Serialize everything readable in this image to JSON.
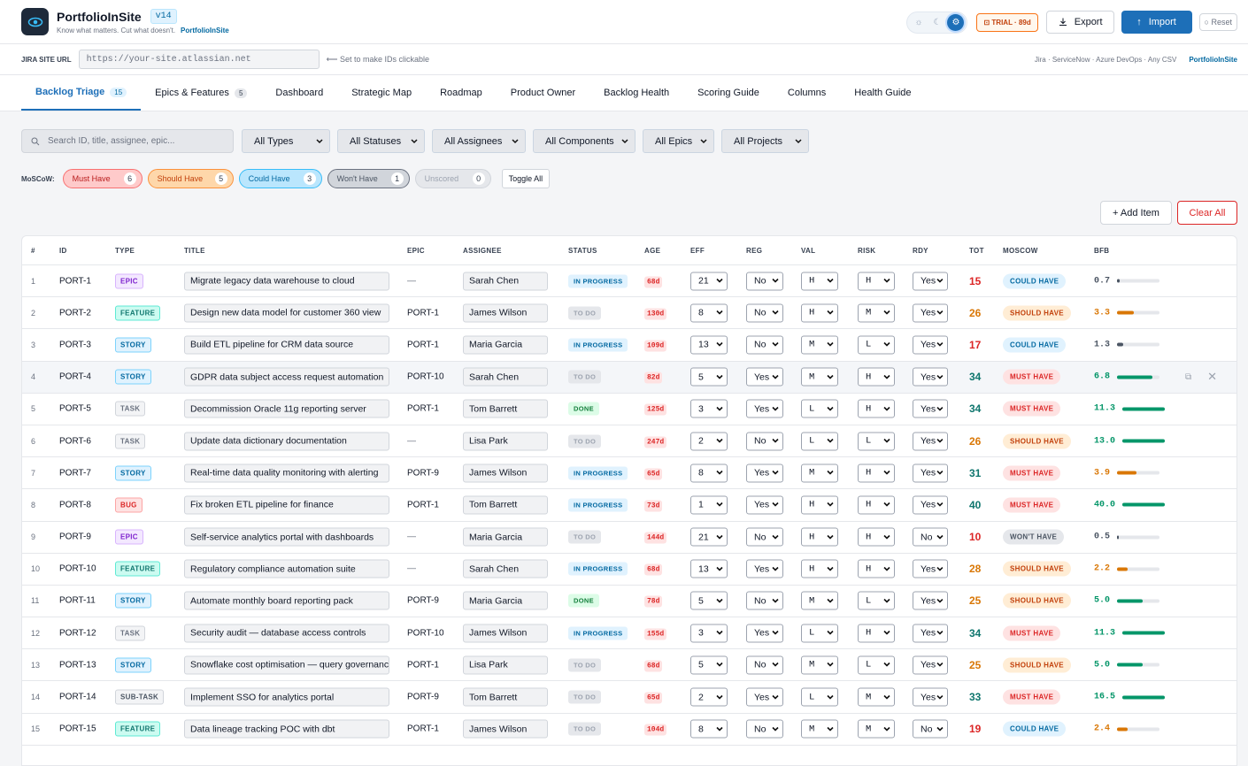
{
  "header": {
    "app_title": "PortfolioInSite",
    "version": "v14",
    "tagline": "Know what matters. Cut what doesn't.",
    "tagline_brand": "PortfolioInSite",
    "trial_label": "TRIAL · 89d",
    "export_label": "Export",
    "import_label": "Import",
    "reset_label": "Reset"
  },
  "jira": {
    "label": "JIRA SITE URL",
    "placeholder": "https://your-site.atlassian.net",
    "hint": "Set to make IDs clickable",
    "sources": "Jira · ServiceNow · Azure DevOps · Any CSV",
    "brand": "PortfolioInSite"
  },
  "tabs": [
    {
      "label": "Backlog Triage",
      "count": "15"
    },
    {
      "label": "Epics & Features",
      "count": "5"
    },
    {
      "label": "Dashboard",
      "count": ""
    },
    {
      "label": "Strategic Map",
      "count": ""
    },
    {
      "label": "Roadmap",
      "count": ""
    },
    {
      "label": "Product Owner",
      "count": ""
    },
    {
      "label": "Backlog Health",
      "count": ""
    },
    {
      "label": "Scoring Guide",
      "count": ""
    },
    {
      "label": "Columns",
      "count": ""
    },
    {
      "label": "Health Guide",
      "count": ""
    }
  ],
  "filters": {
    "search_placeholder": "Search ID, title, assignee, epic...",
    "types": "All Types",
    "statuses": "All Statuses",
    "assignees": "All Assignees",
    "components": "All Components",
    "epics": "All Epics",
    "projects": "All Projects"
  },
  "moscow": {
    "label": "MoSCoW:",
    "chips": [
      {
        "label": "Must Have",
        "count": "6"
      },
      {
        "label": "Should Have",
        "count": "5"
      },
      {
        "label": "Could Have",
        "count": "3"
      },
      {
        "label": "Won't Have",
        "count": "1"
      },
      {
        "label": "Unscored",
        "count": "0"
      }
    ],
    "toggle_label": "Toggle All"
  },
  "actions": {
    "add_label": "+ Add Item",
    "clear_label": "Clear All"
  },
  "columns": [
    "#",
    "ID",
    "TYPE",
    "TITLE",
    "EPIC",
    "ASSIGNEE",
    "STATUS",
    "AGE",
    "EFF",
    "REG",
    "VAL",
    "RISK",
    "RDY",
    "TOT",
    "MOSCOW",
    "BFB"
  ],
  "rows": [
    {
      "n": "1",
      "id": "PORT-1",
      "type": "EPIC",
      "title": "Migrate legacy data warehouse to cloud",
      "epic": "—",
      "assignee": "Sarah Chen",
      "status": "IN PROGRESS",
      "age": "68d",
      "eff": "21",
      "reg": "No",
      "val": "H",
      "risk": "H",
      "rdy": "Yes",
      "tot": "15",
      "moscow": "COULD HAVE",
      "bfb": "0.7",
      "bfb_fill": 0.07
    },
    {
      "n": "2",
      "id": "PORT-2",
      "type": "FEATURE",
      "title": "Design new data model for customer 360 view",
      "epic": "PORT-1",
      "assignee": "James Wilson",
      "status": "TO DO",
      "age": "130d",
      "eff": "8",
      "reg": "No",
      "val": "H",
      "risk": "M",
      "rdy": "Yes",
      "tot": "26",
      "moscow": "SHOULD HAVE",
      "bfb": "3.3",
      "bfb_fill": 0.4
    },
    {
      "n": "3",
      "id": "PORT-3",
      "type": "STORY",
      "title": "Build ETL pipeline for CRM data source",
      "epic": "PORT-1",
      "assignee": "Maria Garcia",
      "status": "IN PROGRESS",
      "age": "109d",
      "eff": "13",
      "reg": "No",
      "val": "M",
      "risk": "L",
      "rdy": "Yes",
      "tot": "17",
      "moscow": "COULD HAVE",
      "bfb": "1.3",
      "bfb_fill": 0.14
    },
    {
      "n": "4",
      "id": "PORT-4",
      "type": "STORY",
      "title": "GDPR data subject access request automation",
      "epic": "PORT-10",
      "assignee": "Sarah Chen",
      "status": "TO DO",
      "age": "82d",
      "eff": "5",
      "reg": "Yes",
      "val": "M",
      "risk": "H",
      "rdy": "Yes",
      "tot": "34",
      "moscow": "MUST HAVE",
      "bfb": "6.8",
      "bfb_fill": 0.83
    },
    {
      "n": "5",
      "id": "PORT-5",
      "type": "TASK",
      "title": "Decommission Oracle 11g reporting server",
      "epic": "PORT-1",
      "assignee": "Tom Barrett",
      "status": "DONE",
      "age": "125d",
      "eff": "3",
      "reg": "Yes",
      "val": "L",
      "risk": "H",
      "rdy": "Yes",
      "tot": "34",
      "moscow": "MUST HAVE",
      "bfb": "11.3",
      "bfb_fill": 1
    },
    {
      "n": "6",
      "id": "PORT-6",
      "type": "TASK",
      "title": "Update data dictionary documentation",
      "epic": "—",
      "assignee": "Lisa Park",
      "status": "TO DO",
      "age": "247d",
      "eff": "2",
      "reg": "No",
      "val": "L",
      "risk": "L",
      "rdy": "Yes",
      "tot": "26",
      "moscow": "SHOULD HAVE",
      "bfb": "13.0",
      "bfb_fill": 1
    },
    {
      "n": "7",
      "id": "PORT-7",
      "type": "STORY",
      "title": "Real-time data quality monitoring with alerting",
      "epic": "PORT-9",
      "assignee": "James Wilson",
      "status": "IN PROGRESS",
      "age": "65d",
      "eff": "8",
      "reg": "Yes",
      "val": "M",
      "risk": "H",
      "rdy": "Yes",
      "tot": "31",
      "moscow": "MUST HAVE",
      "bfb": "3.9",
      "bfb_fill": 0.46
    },
    {
      "n": "8",
      "id": "PORT-8",
      "type": "BUG",
      "title": "Fix broken ETL pipeline for finance",
      "epic": "PORT-1",
      "assignee": "Tom Barrett",
      "status": "IN PROGRESS",
      "age": "73d",
      "eff": "1",
      "reg": "Yes",
      "val": "H",
      "risk": "H",
      "rdy": "Yes",
      "tot": "40",
      "moscow": "MUST HAVE",
      "bfb": "40.0",
      "bfb_fill": 1
    },
    {
      "n": "9",
      "id": "PORT-9",
      "type": "EPIC",
      "title": "Self-service analytics portal with dashboards",
      "epic": "—",
      "assignee": "Maria Garcia",
      "status": "TO DO",
      "age": "144d",
      "eff": "21",
      "reg": "No",
      "val": "H",
      "risk": "H",
      "rdy": "No",
      "tot": "10",
      "moscow": "WON'T HAVE",
      "bfb": "0.5",
      "bfb_fill": 0.05
    },
    {
      "n": "10",
      "id": "PORT-10",
      "type": "FEATURE",
      "title": "Regulatory compliance automation suite",
      "epic": "—",
      "assignee": "Sarah Chen",
      "status": "IN PROGRESS",
      "age": "68d",
      "eff": "13",
      "reg": "Yes",
      "val": "H",
      "risk": "H",
      "rdy": "Yes",
      "tot": "28",
      "moscow": "SHOULD HAVE",
      "bfb": "2.2",
      "bfb_fill": 0.25
    },
    {
      "n": "11",
      "id": "PORT-11",
      "type": "STORY",
      "title": "Automate monthly board reporting pack",
      "epic": "PORT-9",
      "assignee": "Maria Garcia",
      "status": "DONE",
      "age": "78d",
      "eff": "5",
      "reg": "No",
      "val": "M",
      "risk": "L",
      "rdy": "Yes",
      "tot": "25",
      "moscow": "SHOULD HAVE",
      "bfb": "5.0",
      "bfb_fill": 0.6
    },
    {
      "n": "12",
      "id": "PORT-12",
      "type": "TASK",
      "title": "Security audit — database access controls",
      "epic": "PORT-10",
      "assignee": "James Wilson",
      "status": "IN PROGRESS",
      "age": "155d",
      "eff": "3",
      "reg": "Yes",
      "val": "L",
      "risk": "H",
      "rdy": "Yes",
      "tot": "34",
      "moscow": "MUST HAVE",
      "bfb": "11.3",
      "bfb_fill": 1
    },
    {
      "n": "13",
      "id": "PORT-13",
      "type": "STORY",
      "title": "Snowflake cost optimisation — query governance",
      "epic": "PORT-1",
      "assignee": "Lisa Park",
      "status": "TO DO",
      "age": "68d",
      "eff": "5",
      "reg": "No",
      "val": "M",
      "risk": "L",
      "rdy": "Yes",
      "tot": "25",
      "moscow": "SHOULD HAVE",
      "bfb": "5.0",
      "bfb_fill": 0.6
    },
    {
      "n": "14",
      "id": "PORT-14",
      "type": "SUB-TASK",
      "title": "Implement SSO for analytics portal",
      "epic": "PORT-9",
      "assignee": "Tom Barrett",
      "status": "TO DO",
      "age": "65d",
      "eff": "2",
      "reg": "Yes",
      "val": "L",
      "risk": "M",
      "rdy": "Yes",
      "tot": "33",
      "moscow": "MUST HAVE",
      "bfb": "16.5",
      "bfb_fill": 1
    },
    {
      "n": "15",
      "id": "PORT-15",
      "type": "FEATURE",
      "title": "Data lineage tracking POC with dbt",
      "epic": "PORT-1",
      "assignee": "James Wilson",
      "status": "TO DO",
      "age": "104d",
      "eff": "8",
      "reg": "No",
      "val": "M",
      "risk": "M",
      "rdy": "No",
      "tot": "19",
      "moscow": "COULD HAVE",
      "bfb": "2.4",
      "bfb_fill": 0.26
    }
  ],
  "colors": {
    "accent": "#1d6fb8",
    "must": "#dc2626",
    "should": "#ea580c",
    "could": "#0369a1",
    "wont": "#4b5563",
    "green": "#059669"
  }
}
